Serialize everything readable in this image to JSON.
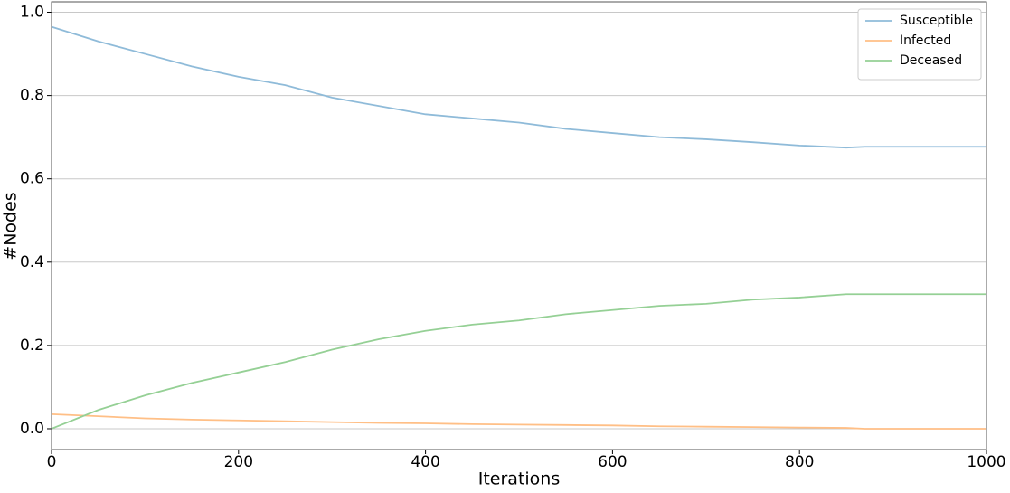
{
  "chart_data": {
    "type": "line",
    "xlabel": "Iterations",
    "ylabel": "#Nodes",
    "x": [
      0,
      50,
      100,
      150,
      200,
      250,
      300,
      350,
      400,
      450,
      500,
      550,
      600,
      650,
      700,
      750,
      800,
      850,
      870,
      900,
      950,
      1000
    ],
    "series": [
      {
        "name": "Susceptible",
        "color": "#8fbbd9",
        "values": [
          0.965,
          0.93,
          0.9,
          0.87,
          0.845,
          0.825,
          0.795,
          0.775,
          0.755,
          0.745,
          0.735,
          0.72,
          0.71,
          0.7,
          0.695,
          0.688,
          0.68,
          0.675,
          0.677,
          0.677,
          0.677,
          0.677
        ]
      },
      {
        "name": "Infected",
        "color": "#ffbf86",
        "values": [
          0.035,
          0.03,
          0.025,
          0.022,
          0.02,
          0.018,
          0.016,
          0.014,
          0.013,
          0.011,
          0.01,
          0.009,
          0.008,
          0.006,
          0.005,
          0.004,
          0.003,
          0.002,
          0,
          0,
          0,
          0
        ]
      },
      {
        "name": "Deceased",
        "color": "#95d095",
        "values": [
          0,
          0.045,
          0.08,
          0.11,
          0.135,
          0.16,
          0.19,
          0.215,
          0.235,
          0.25,
          0.26,
          0.275,
          0.285,
          0.295,
          0.3,
          0.31,
          0.315,
          0.323,
          0.323,
          0.323,
          0.323,
          0.323
        ]
      }
    ],
    "xlim": [
      0,
      1000
    ],
    "xticks": [
      0,
      200,
      400,
      600,
      800,
      1000
    ],
    "ylim": [
      -0.05,
      1.025
    ],
    "yticks": [
      {
        "value": 0,
        "label": "0.0"
      },
      0.2,
      0.4,
      0.6,
      0.8,
      {
        "value": 1,
        "label": "1.0"
      }
    ],
    "grid": "y",
    "legend": "upper right"
  }
}
